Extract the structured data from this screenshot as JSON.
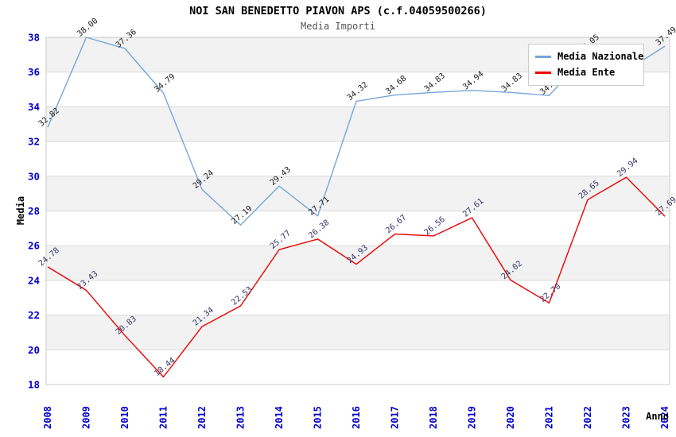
{
  "chart": {
    "title": "NOI SAN BENEDETTO PIAVON APS (c.f.04059500266)",
    "subtitle": "Media Importi",
    "legend": [
      {
        "label": "Media Nazionale",
        "color": "#76a5da"
      },
      {
        "label": "Media Ente",
        "color": "#ee0000"
      }
    ]
  },
  "chart_data": {
    "type": "line",
    "title": "NOI SAN BENEDETTO PIAVON APS (c.f.04059500266)",
    "subtitle": "Media Importi",
    "xlabel": "Anno",
    "ylabel": "Media",
    "x": [
      2008,
      2009,
      2010,
      2011,
      2012,
      2013,
      2014,
      2015,
      2016,
      2017,
      2018,
      2019,
      2020,
      2021,
      2022,
      2023,
      2024
    ],
    "ylim": [
      18,
      38
    ],
    "ytick_step": 2,
    "grid": true,
    "band_color": "#f2f2f2",
    "gridline_color": "#d9d9d9",
    "plot_border_color": "#c8c8c8",
    "tick_label_color": "#0000cc",
    "legend_position": "top-right-inside",
    "series": [
      {
        "name": "Media Nazionale",
        "color": "#76a5da",
        "label_color": "#1a1a1a",
        "values": [
          32.82,
          38.0,
          37.36,
          34.79,
          29.24,
          27.19,
          29.43,
          27.71,
          34.32,
          34.68,
          34.83,
          34.94,
          34.83,
          34.65,
          37.05,
          36.06,
          37.49
        ]
      },
      {
        "name": "Media Ente",
        "color": "#ee0000",
        "label_color": "#333366",
        "values": [
          24.78,
          23.43,
          20.83,
          18.44,
          21.34,
          22.53,
          25.77,
          26.38,
          24.93,
          26.67,
          26.56,
          27.61,
          24.02,
          22.7,
          28.65,
          29.94,
          27.69
        ]
      }
    ]
  }
}
